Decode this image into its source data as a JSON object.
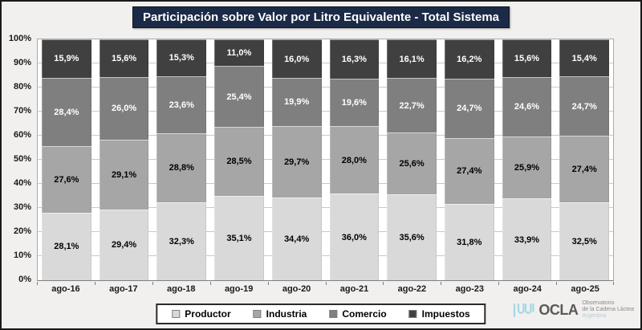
{
  "title": "Participación sobre Valor por Litro Equivalente - Total Sistema",
  "colors": {
    "title_bg": "#1b2a46",
    "title_text": "#ffffff",
    "frame_bg": "#f1f0ee",
    "plot_bg": "#ffffff",
    "gridline": "#c9c9c9",
    "logo_wave": "#a7d6e4"
  },
  "chart_data": {
    "type": "bar",
    "stacked": true,
    "title": "Participación sobre Valor por Litro Equivalente - Total Sistema",
    "categories": [
      "ago-16",
      "ago-17",
      "ago-18",
      "ago-19",
      "ago-20",
      "ago-21",
      "ago-22",
      "ago-23",
      "ago-24",
      "ago-25"
    ],
    "series": [
      {
        "name": "Productor",
        "color": "#d9d9d9",
        "label_color": "#000000",
        "values": [
          28.1,
          29.4,
          32.3,
          35.1,
          34.4,
          36.0,
          35.6,
          31.8,
          33.9,
          32.5
        ],
        "labels": [
          "28,1%",
          "29,4%",
          "32,3%",
          "35,1%",
          "34,4%",
          "36,0%",
          "35,6%",
          "31,8%",
          "33,9%",
          "32,5%"
        ]
      },
      {
        "name": "Industria",
        "color": "#a6a6a6",
        "label_color": "#000000",
        "values": [
          27.6,
          29.1,
          28.8,
          28.5,
          29.7,
          28.0,
          25.6,
          27.4,
          25.9,
          27.4
        ],
        "labels": [
          "27,6%",
          "29,1%",
          "28,8%",
          "28,5%",
          "29,7%",
          "28,0%",
          "25,6%",
          "27,4%",
          "25,9%",
          "27,4%"
        ]
      },
      {
        "name": "Comercio",
        "color": "#7f7f7f",
        "label_color": "#ffffff",
        "values": [
          28.4,
          26.0,
          23.6,
          25.4,
          19.9,
          19.6,
          22.7,
          24.7,
          24.6,
          24.7
        ],
        "labels": [
          "28,4%",
          "26,0%",
          "23,6%",
          "25,4%",
          "19,9%",
          "19,6%",
          "22,7%",
          "24,7%",
          "24,6%",
          "24,7%"
        ]
      },
      {
        "name": "Impuestos",
        "color": "#404040",
        "label_color": "#ffffff",
        "values": [
          15.9,
          15.6,
          15.3,
          11.0,
          16.0,
          16.3,
          16.1,
          16.2,
          15.6,
          15.4
        ],
        "labels": [
          "15,9%",
          "15,6%",
          "15,3%",
          "11,0%",
          "16,0%",
          "16,3%",
          "16,1%",
          "16,2%",
          "15,6%",
          "15,4%"
        ]
      }
    ],
    "y_ticks": [
      "0%",
      "10%",
      "20%",
      "30%",
      "40%",
      "50%",
      "60%",
      "70%",
      "80%",
      "90%",
      "100%"
    ],
    "ylim": [
      0,
      100
    ],
    "grid": true,
    "legend_position": "bottom"
  },
  "legend": {
    "items": [
      {
        "label": "Productor",
        "color": "#d9d9d9"
      },
      {
        "label": "Industria",
        "color": "#a6a6a6"
      },
      {
        "label": "Comercio",
        "color": "#7f7f7f"
      },
      {
        "label": "Impuestos",
        "color": "#404040"
      }
    ]
  },
  "logo": {
    "name": "OCLA",
    "org_line1": "Observatorio",
    "org_line2": "de la Cadena Láctea",
    "org_line3": "Argentina"
  }
}
